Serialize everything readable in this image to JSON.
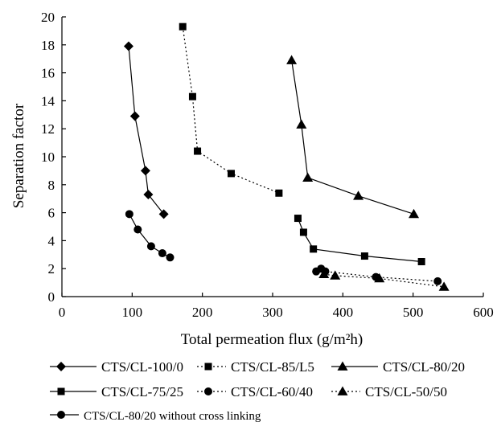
{
  "chart_data": {
    "type": "scatter",
    "title": "",
    "xlabel": "Total permeation flux (g/m²h)",
    "ylabel": "Separation factor",
    "xlim": [
      0,
      600
    ],
    "ylim": [
      0,
      20
    ],
    "xticks": [
      0,
      100,
      200,
      300,
      400,
      500,
      600
    ],
    "yticks": [
      0,
      2,
      4,
      6,
      8,
      10,
      12,
      14,
      16,
      18,
      20
    ],
    "grid": false,
    "legend_position": "bottom",
    "series": [
      {
        "name": "CTS/CL-100/0",
        "marker": "diamond",
        "line": "solid",
        "points": [
          [
            95,
            17.9
          ],
          [
            104,
            12.9
          ],
          [
            119,
            9.0
          ],
          [
            123,
            7.3
          ],
          [
            145,
            5.9
          ]
        ]
      },
      {
        "name": "CTS/CL-85/L5",
        "marker": "square",
        "line": "dotted",
        "points": [
          [
            172,
            19.3
          ],
          [
            186,
            14.3
          ],
          [
            193,
            10.4
          ],
          [
            241,
            8.8
          ],
          [
            309,
            7.4
          ]
        ]
      },
      {
        "name": "CTS/CL-80/20",
        "marker": "triangle",
        "line": "solid",
        "points": [
          [
            327,
            16.9
          ],
          [
            341,
            12.3
          ],
          [
            350,
            8.5
          ],
          [
            422,
            7.2
          ],
          [
            501,
            5.9
          ]
        ]
      },
      {
        "name": "CTS/CL-75/25",
        "marker": "square",
        "line": "solid",
        "points": [
          [
            336,
            5.6
          ],
          [
            344,
            4.6
          ],
          [
            358,
            3.4
          ],
          [
            431,
            2.9
          ],
          [
            512,
            2.5
          ]
        ]
      },
      {
        "name": "CTS/CL-60/40",
        "marker": "circle",
        "line": "dotted",
        "points": [
          [
            362,
            1.8
          ],
          [
            369,
            2.0
          ],
          [
            375,
            1.8
          ],
          [
            447,
            1.4
          ],
          [
            535,
            1.1
          ]
        ]
      },
      {
        "name": "CTS/CL-50/50",
        "marker": "triangle",
        "line": "dotted",
        "points": [
          [
            373,
            1.6
          ],
          [
            389,
            1.5
          ],
          [
            452,
            1.3
          ],
          [
            544,
            0.7
          ]
        ]
      },
      {
        "name": "CTS/CL-80/20 without cross linking",
        "marker": "circle",
        "line": "solid",
        "points": [
          [
            96,
            5.9
          ],
          [
            108,
            4.8
          ],
          [
            127,
            3.6
          ],
          [
            143,
            3.1
          ],
          [
            154,
            2.8
          ]
        ]
      }
    ]
  }
}
